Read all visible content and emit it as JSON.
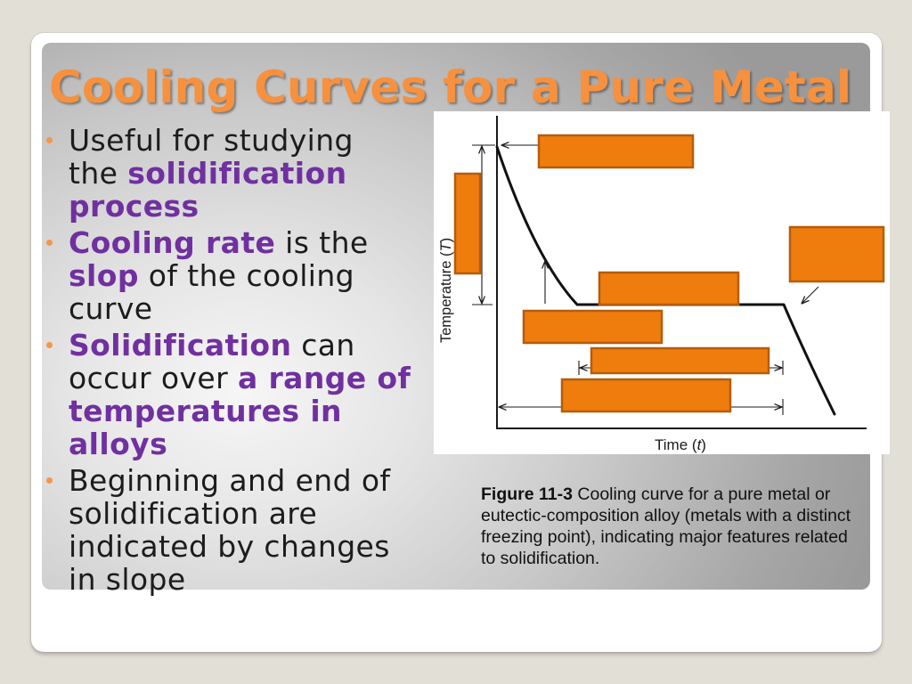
{
  "slide": {
    "title": "Cooling Curves for a Pure Metal",
    "bullets": [
      {
        "lines": [
          [
            {
              "text": "Useful for studying",
              "emphasis": false
            }
          ],
          [
            {
              "text": "the ",
              "emphasis": false
            },
            {
              "text": "solidification",
              "emphasis": true
            }
          ],
          [
            {
              "text": "process",
              "emphasis": true
            }
          ]
        ]
      },
      {
        "lines": [
          [
            {
              "text": "Cooling rate",
              "emphasis": true
            },
            {
              "text": " is the",
              "emphasis": false
            }
          ],
          [
            {
              "text": "slop",
              "emphasis": true
            },
            {
              "text": " of the cooling",
              "emphasis": false
            }
          ],
          [
            {
              "text": "curve",
              "emphasis": false
            }
          ]
        ]
      },
      {
        "lines": [
          [
            {
              "text": "Solidification",
              "emphasis": true
            },
            {
              "text": " can",
              "emphasis": false
            }
          ],
          [
            {
              "text": "occur over ",
              "emphasis": false
            },
            {
              "text": "a range of",
              "emphasis": true
            }
          ],
          [
            {
              "text": "temperatures in",
              "emphasis": true
            }
          ],
          [
            {
              "text": "alloys",
              "emphasis": true
            }
          ]
        ]
      },
      {
        "lines": [
          [
            {
              "text": "Beginning and end of",
              "emphasis": false
            }
          ],
          [
            {
              "text": "solidification are",
              "emphasis": false
            }
          ],
          [
            {
              "text": "indicated by changes",
              "emphasis": false
            }
          ],
          [
            {
              "text": "in slope",
              "emphasis": false
            }
          ]
        ]
      }
    ]
  },
  "figure": {
    "y_axis_label": {
      "text": "Temperature (",
      "variable": "T",
      "close": ")"
    },
    "x_axis_label": {
      "text": "Time (",
      "variable": "t",
      "close": ")"
    },
    "caption": {
      "label": "Figure 11-3",
      "text": "Cooling curve for a pure metal or eutectic-composition alloy (metals with a distinct freezing point), indicating major features related to solidification."
    }
  },
  "theme": {
    "title_color": "#f7913d",
    "emphasis_color": "#7030a0",
    "bullet_color": "#f79646",
    "label_box_fill": "#ef7d0e",
    "label_box_border": "#b65c0a"
  }
}
